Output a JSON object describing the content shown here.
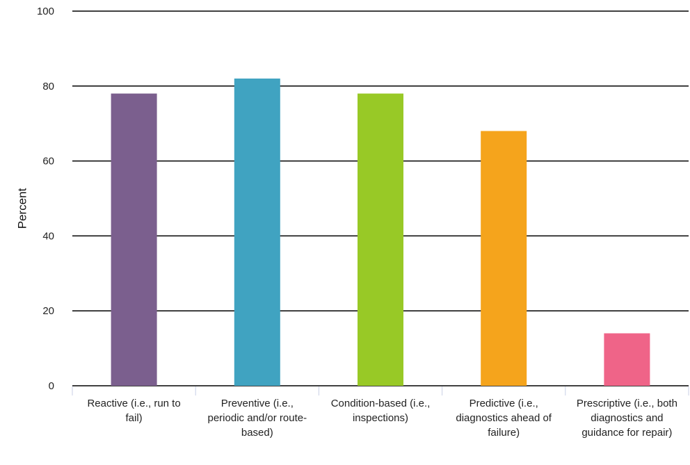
{
  "chart_data": {
    "type": "bar",
    "title": "",
    "xlabel": "",
    "ylabel": "Percent",
    "ylim": [
      0,
      100
    ],
    "yticks": [
      0,
      20,
      40,
      60,
      80,
      100
    ],
    "grid": true,
    "categories": [
      "Reactive (i.e., run to fail)",
      "Preventive (i.e., periodic and/or route-based)",
      "Condition-based (i.e., inspections)",
      "Predictive (i.e., diagnostics ahead of failure)",
      "Prescriptive (i.e., both diagnostics and guidance for repair)"
    ],
    "values": [
      78,
      82,
      78,
      68,
      14
    ],
    "colors": [
      "#7b5f8e",
      "#40a3c1",
      "#98c926",
      "#f5a41c",
      "#ef6488"
    ]
  }
}
